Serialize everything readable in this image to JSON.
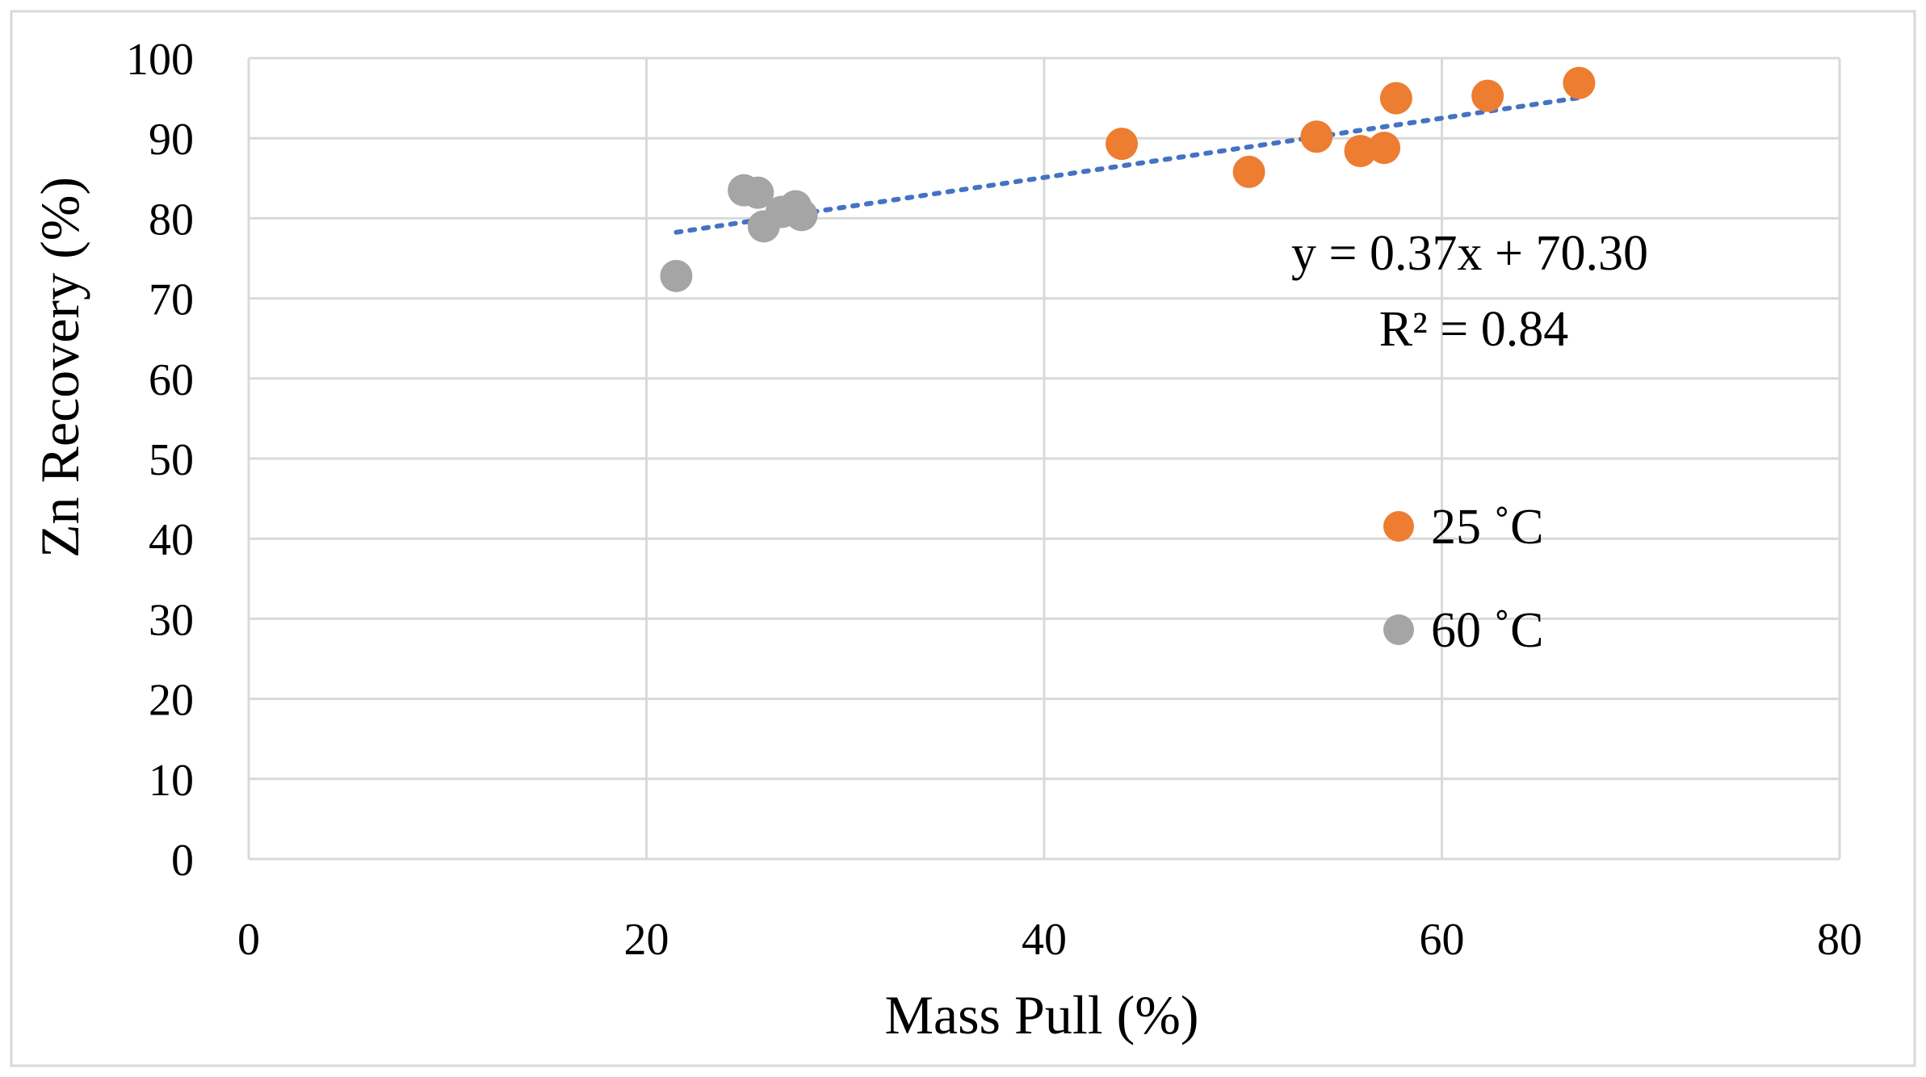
{
  "chart_data": {
    "type": "scatter",
    "title": "",
    "xlabel": "Mass Pull (%)",
    "ylabel": "Zn Recovery  (%)",
    "xlim": [
      0,
      80
    ],
    "ylim": [
      0,
      100
    ],
    "xticks": [
      0,
      20,
      40,
      60,
      80
    ],
    "yticks": [
      0,
      10,
      20,
      30,
      40,
      50,
      60,
      70,
      80,
      90,
      100
    ],
    "xtick_labels": [
      "0",
      "20",
      "40",
      "60",
      "80"
    ],
    "ytick_labels": [
      "0",
      "10",
      "20",
      "30",
      "40",
      "50",
      "60",
      "70",
      "80",
      "90",
      "100"
    ],
    "grid": true,
    "legend_position": "right",
    "series": [
      {
        "name": "25 ˚C",
        "color": "#ED7D31",
        "points": [
          [
            43.9,
            89.3
          ],
          [
            50.3,
            85.8
          ],
          [
            53.7,
            90.2
          ],
          [
            55.9,
            88.4
          ],
          [
            57.1,
            88.8
          ],
          [
            57.7,
            95.0
          ],
          [
            62.3,
            95.3
          ],
          [
            66.9,
            96.9
          ]
        ]
      },
      {
        "name": "60 ˚C",
        "color": "#A5A5A5",
        "points": [
          [
            21.5,
            72.8
          ],
          [
            24.9,
            83.5
          ],
          [
            25.6,
            83.2
          ],
          [
            25.9,
            79.0
          ],
          [
            26.8,
            80.8
          ],
          [
            27.5,
            81.5
          ],
          [
            27.8,
            80.4
          ]
        ]
      }
    ],
    "trendline": {
      "type": "linear",
      "style": "dotted",
      "color": "#4472C4",
      "slope": 0.37,
      "intercept": 70.3,
      "x_range": [
        21.5,
        66.9
      ],
      "equation_label": "y = 0.37x + 70.30",
      "r2_label": "R² = 0.84"
    }
  }
}
